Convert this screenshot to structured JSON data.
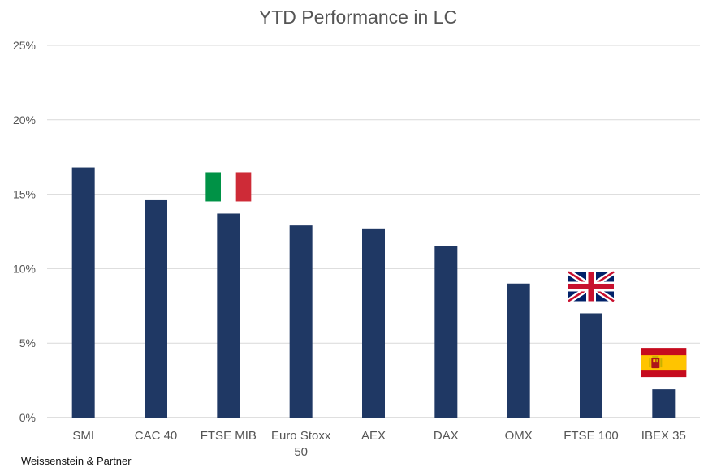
{
  "chart_data": {
    "type": "bar",
    "title": "YTD Performance in LC",
    "categories": [
      "SMI",
      "CAC 40",
      "FTSE MIB",
      "Euro Stoxx 50",
      "AEX",
      "DAX",
      "OMX",
      "FTSE 100",
      "IBEX 35"
    ],
    "category_lines": [
      [
        "SMI"
      ],
      [
        "CAC 40"
      ],
      [
        "FTSE MIB"
      ],
      [
        "Euro Stoxx",
        "50"
      ],
      [
        "AEX"
      ],
      [
        "DAX"
      ],
      [
        "OMX"
      ],
      [
        "FTSE 100"
      ],
      [
        "IBEX 35"
      ]
    ],
    "values": [
      16.8,
      14.6,
      13.7,
      12.9,
      12.7,
      11.5,
      9.0,
      7.0,
      1.9
    ],
    "ylim": [
      0,
      25
    ],
    "yticks": [
      0,
      5,
      10,
      15,
      20,
      25
    ],
    "ytick_labels": [
      "0%",
      "5%",
      "10%",
      "15%",
      "20%",
      "25%"
    ],
    "grid": true,
    "xlabel": "",
    "ylabel": "",
    "flags": [
      {
        "category": "FTSE MIB",
        "icon": "italy-flag-icon"
      },
      {
        "category": "FTSE 100",
        "icon": "uk-flag-icon"
      },
      {
        "category": "IBEX 35",
        "icon": "spain-flag-icon"
      }
    ]
  },
  "colors": {
    "bar": "#1f3864",
    "grid": "#d9d9d9",
    "text": "#555555"
  },
  "source": "Weissenstein & Partner"
}
